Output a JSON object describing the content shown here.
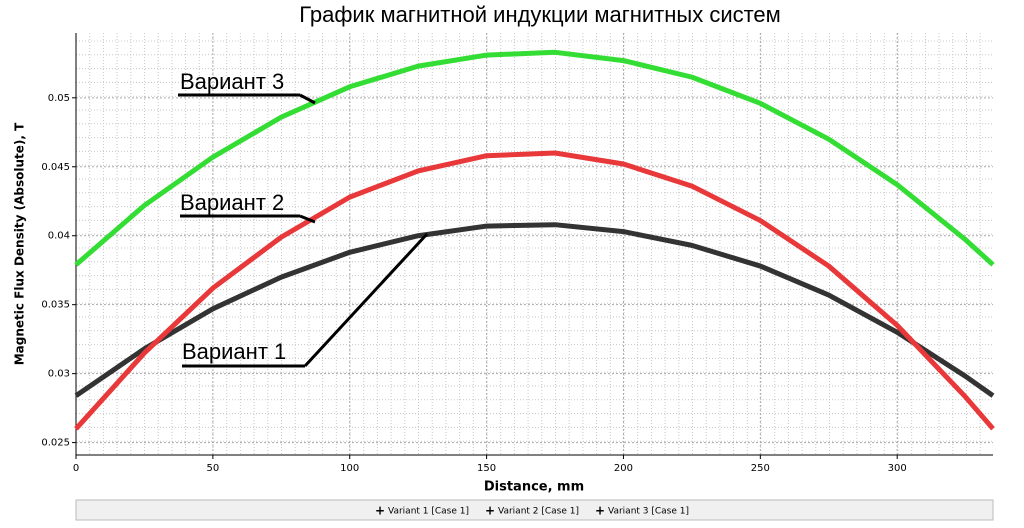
{
  "chart_data": {
    "type": "line",
    "title": "График магнитной индукции магнитных систем",
    "xlabel": "Distance, mm",
    "ylabel": "Magnetic Flux Density (Absolute), T",
    "x": [
      0,
      25,
      50,
      75,
      100,
      125,
      150,
      175,
      200,
      225,
      250,
      275,
      300,
      325,
      335
    ],
    "series": [
      {
        "name": "Variant 1 [Case 1]",
        "color": "#333333",
        "values": [
          0.0284,
          0.0318,
          0.0347,
          0.037,
          0.0388,
          0.04,
          0.0407,
          0.0408,
          0.0403,
          0.0393,
          0.0378,
          0.0357,
          0.033,
          0.0298,
          0.0284
        ]
      },
      {
        "name": "Variant 2 [Case 1]",
        "color": "#e8383a",
        "values": [
          0.026,
          0.0315,
          0.0362,
          0.0399,
          0.0428,
          0.0447,
          0.0458,
          0.046,
          0.0452,
          0.0436,
          0.0411,
          0.0378,
          0.0335,
          0.0283,
          0.026
        ]
      },
      {
        "name": "Variant 3 [Case 1]",
        "color": "#33dd33",
        "values": [
          0.0379,
          0.0422,
          0.0457,
          0.0486,
          0.0508,
          0.0523,
          0.0531,
          0.0533,
          0.0527,
          0.0515,
          0.0496,
          0.047,
          0.0437,
          0.0397,
          0.0379
        ]
      }
    ],
    "annotations": [
      "Вариант 1",
      "Вариант 2",
      "Вариант 3"
    ],
    "xlim": [
      0,
      335
    ],
    "ylim": [
      0.0241,
      0.0547
    ],
    "xticks": [
      0,
      50,
      100,
      150,
      200,
      250,
      300
    ],
    "yticks": [
      0.025,
      0.03,
      0.035,
      0.04,
      0.045,
      0.05
    ],
    "grid": true
  }
}
